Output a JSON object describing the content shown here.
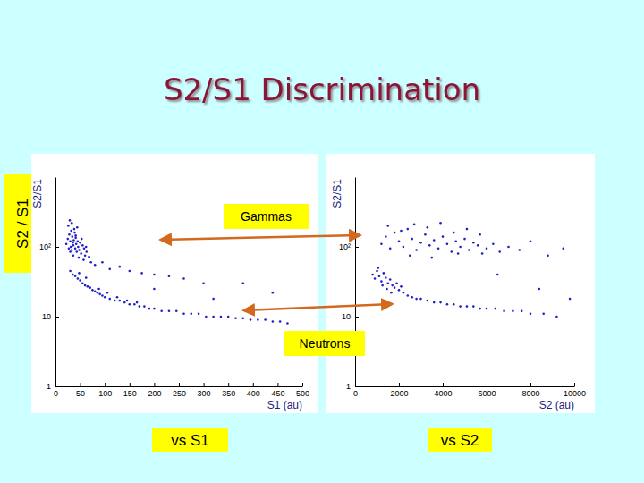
{
  "slide": {
    "title": "S2/S1 Discrimination",
    "side_label": "S2 / S1",
    "annotations": [
      "Gammas",
      "Neutrons"
    ]
  },
  "chart_data": [
    {
      "type": "scatter",
      "xlabel": "S1 (au)",
      "ylabel": "S2/S1",
      "caption": "vs S1",
      "color": "#1f1fc4",
      "log": "y",
      "xlim": [
        0,
        500
      ],
      "xticks": [
        0,
        50,
        100,
        150,
        200,
        250,
        300,
        350,
        400,
        450,
        500
      ],
      "ylim": [
        1,
        1000
      ],
      "yticks": [
        1,
        10,
        {
          "value": 100,
          "label": "10²"
        }
      ],
      "x": [
        22,
        25,
        27,
        28,
        30,
        31,
        32,
        33,
        34,
        35,
        36,
        37,
        38,
        40,
        41,
        42,
        43,
        45,
        46,
        48,
        50,
        52,
        55,
        58,
        60,
        63,
        26,
        29,
        33,
        39,
        44,
        47,
        53,
        57,
        62,
        68,
        72,
        30,
        36,
        41,
        80,
        95,
        110,
        130,
        150,
        175,
        200,
        230,
        260,
        300,
        30,
        35,
        40,
        45,
        50,
        55,
        60,
        65,
        70,
        75,
        80,
        85,
        90,
        95,
        100,
        110,
        120,
        130,
        140,
        150,
        160,
        170,
        180,
        190,
        200,
        215,
        230,
        245,
        260,
        275,
        290,
        305,
        320,
        335,
        350,
        365,
        380,
        395,
        410,
        425,
        440,
        455,
        470,
        48,
        62,
        88,
        105,
        125,
        145,
        165,
        200,
        320,
        380,
        440
      ],
      "values": [
        110,
        130,
        95,
        150,
        120,
        100,
        170,
        90,
        140,
        115,
        105,
        125,
        180,
        95,
        135,
        110,
        85,
        120,
        100,
        90,
        115,
        80,
        105,
        95,
        75,
        85,
        200,
        240,
        220,
        160,
        190,
        70,
        130,
        65,
        100,
        72,
        60,
        85,
        75,
        145,
        55,
        60,
        48,
        52,
        45,
        42,
        40,
        38,
        35,
        30,
        45,
        40,
        38,
        35,
        33,
        30,
        28,
        27,
        26,
        24,
        23,
        22,
        21,
        20,
        19,
        18,
        17,
        17,
        16,
        15,
        15,
        14,
        14,
        13,
        13,
        12,
        12,
        12,
        11,
        11,
        11,
        10,
        10,
        10,
        10,
        9.5,
        9.5,
        9,
        9,
        9,
        8.5,
        8.5,
        8,
        42,
        36,
        25,
        22,
        19,
        17,
        16,
        25,
        18,
        30,
        22
      ]
    },
    {
      "type": "scatter",
      "xlabel": "S2 (au)",
      "ylabel": "S2/S1",
      "caption": "vs S2",
      "color": "#1f1fc4",
      "log": "y",
      "xlim": [
        0,
        10000
      ],
      "xticks": [
        0,
        2000,
        4000,
        6000,
        8000,
        10000
      ],
      "ylim": [
        1,
        1000
      ],
      "yticks": [
        1,
        10,
        {
          "value": 100,
          "label": "10²"
        }
      ],
      "x": [
        1200,
        1400,
        1600,
        1800,
        2000,
        2200,
        2400,
        2600,
        2800,
        3000,
        3200,
        3400,
        3600,
        3800,
        4000,
        4200,
        4400,
        4600,
        4800,
        5000,
        5200,
        5400,
        5600,
        5800,
        6000,
        6300,
        6600,
        7000,
        7500,
        8000,
        8800,
        9500,
        1500,
        2100,
        2700,
        3300,
        3900,
        4500,
        5100,
        5700,
        2500,
        3500,
        4700,
        800,
        900,
        1000,
        1100,
        1200,
        1300,
        1400,
        1500,
        1600,
        1700,
        1800,
        1900,
        2000,
        2200,
        2400,
        2600,
        2800,
        3000,
        3300,
        3600,
        3900,
        4200,
        4500,
        4800,
        5100,
        5400,
        5700,
        6000,
        6400,
        6800,
        7200,
        7600,
        8000,
        8600,
        9200,
        1050,
        1250,
        1450,
        1650,
        2100,
        6500,
        8400,
        9800
      ],
      "values": [
        110,
        140,
        95,
        160,
        120,
        100,
        180,
        130,
        90,
        115,
        150,
        105,
        125,
        95,
        140,
        110,
        85,
        120,
        100,
        130,
        90,
        115,
        105,
        80,
        95,
        110,
        85,
        100,
        90,
        120,
        75,
        95,
        200,
        170,
        210,
        190,
        220,
        160,
        180,
        150,
        75,
        70,
        80,
        40,
        35,
        45,
        38,
        32,
        42,
        36,
        30,
        34,
        28,
        26,
        30,
        24,
        22,
        20,
        19,
        18,
        18,
        17,
        16,
        16,
        15,
        15,
        14,
        14,
        14,
        13,
        13,
        13,
        12,
        12,
        12,
        11,
        11,
        10,
        50,
        28,
        25,
        22,
        27,
        40,
        25,
        18
      ]
    }
  ]
}
